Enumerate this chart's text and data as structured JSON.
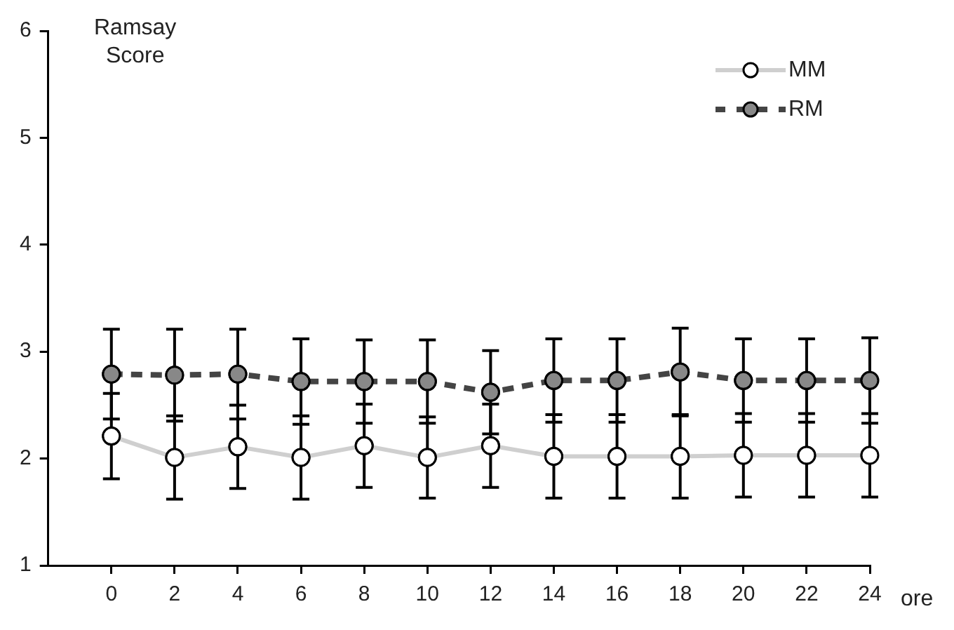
{
  "chart_data": {
    "type": "line",
    "ylabel": "Ramsay Score",
    "xlabel": "ore",
    "x": [
      0,
      2,
      4,
      6,
      8,
      10,
      12,
      14,
      16,
      18,
      20,
      22,
      24
    ],
    "xlim": [
      -2,
      24
    ],
    "xticks": [
      0,
      2,
      4,
      6,
      8,
      10,
      12,
      14,
      16,
      18,
      20,
      22,
      24
    ],
    "ylim": [
      1,
      6
    ],
    "yticks": [
      1,
      2,
      3,
      4,
      5,
      6
    ],
    "grid": false,
    "legend": "top right",
    "marker": "circle",
    "series": [
      {
        "name": "MM",
        "color": "#cfcfcf",
        "line_style": "solid",
        "values": [
          2.21,
          2.01,
          2.11,
          2.01,
          2.12,
          2.01,
          2.12,
          2.02,
          2.02,
          2.02,
          2.03,
          2.03,
          2.03
        ],
        "errors": [
          0.4,
          0.39,
          0.39,
          0.39,
          0.39,
          0.38,
          0.39,
          0.39,
          0.39,
          0.39,
          0.39,
          0.39,
          0.39
        ]
      },
      {
        "name": "RM",
        "color": "#444444",
        "line_style": "dashed",
        "values": [
          2.79,
          2.78,
          2.79,
          2.72,
          2.72,
          2.72,
          2.62,
          2.73,
          2.73,
          2.81,
          2.73,
          2.73,
          2.73
        ],
        "errors": [
          0.42,
          0.43,
          0.42,
          0.4,
          0.39,
          0.39,
          0.39,
          0.39,
          0.39,
          0.41,
          0.39,
          0.39,
          0.4
        ]
      }
    ]
  }
}
